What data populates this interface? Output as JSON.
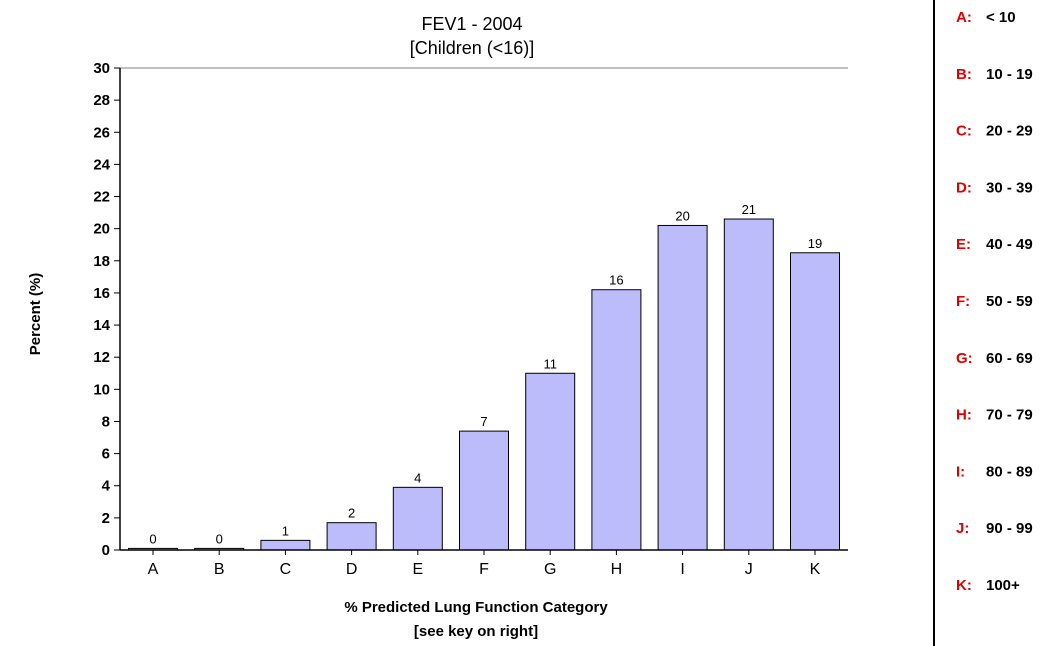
{
  "chart_data": {
    "type": "bar",
    "title": "FEV1 - 2004",
    "subtitle": "[Children (<16)]",
    "categories": [
      "A",
      "B",
      "C",
      "D",
      "E",
      "F",
      "G",
      "H",
      "I",
      "J",
      "K"
    ],
    "values": [
      0.1,
      0.1,
      0.6,
      1.7,
      3.9,
      7.4,
      11.0,
      16.2,
      20.2,
      20.6,
      18.5
    ],
    "data_labels": [
      "0",
      "0",
      "1",
      "2",
      "4",
      "7",
      "11",
      "16",
      "20",
      "21",
      "19"
    ],
    "ylabel": "Percent (%)",
    "xlabel": "% Predicted Lung Function Category",
    "xlabel_note": "[see key on right]",
    "ylim": [
      0,
      30
    ],
    "yticks": [
      "0",
      "2",
      "4",
      "6",
      "8",
      "10",
      "12",
      "14",
      "16",
      "18",
      "20",
      "22",
      "24",
      "26",
      "28",
      "30"
    ],
    "grid": false,
    "bar_color": "#bcbcfb",
    "key_position": "right",
    "key": [
      {
        "letter": "A:",
        "range": "< 10"
      },
      {
        "letter": "B:",
        "range": "10 - 19"
      },
      {
        "letter": "C:",
        "range": "20 - 29"
      },
      {
        "letter": "D:",
        "range": "30 - 39"
      },
      {
        "letter": "E:",
        "range": "40 - 49"
      },
      {
        "letter": "F:",
        "range": "50 - 59"
      },
      {
        "letter": "G:",
        "range": "60 - 69"
      },
      {
        "letter": "H:",
        "range": "70 - 79"
      },
      {
        "letter": "I:",
        "range": "80 - 89"
      },
      {
        "letter": "J:",
        "range": "90 - 99"
      },
      {
        "letter": "K:",
        "range": "100+"
      }
    ]
  }
}
